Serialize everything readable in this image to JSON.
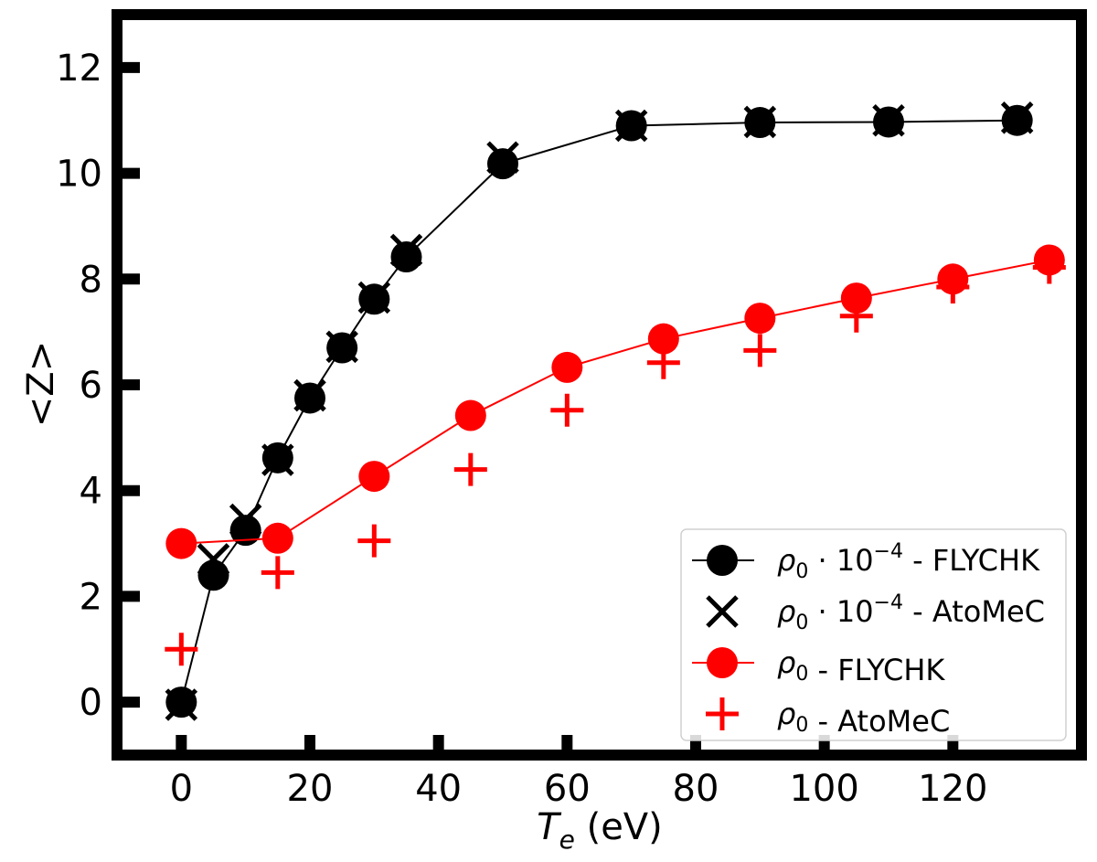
{
  "chart_data": {
    "type": "line",
    "title": "",
    "xlabel_var": "T",
    "xlabel_sub": "e",
    "xlabel_unit": " (eV)",
    "ylabel": "<Z>",
    "xlim": [
      -10,
      140
    ],
    "ylim": [
      -1,
      13
    ],
    "xticks": [
      0,
      20,
      40,
      60,
      80,
      100,
      120
    ],
    "xtick_labels": [
      "0",
      "20",
      "40",
      "60",
      "80",
      "100",
      "120"
    ],
    "yticks": [
      0,
      2,
      4,
      6,
      8,
      10,
      12
    ],
    "ytick_labels": [
      "0",
      "2",
      "4",
      "6",
      "8",
      "10",
      "12"
    ],
    "grid": false,
    "legend_position": "bottom-right",
    "series": [
      {
        "name": "ρ0·10^-4 - FLYCHK",
        "legend_sym": "ρ",
        "legend_sub": "0",
        "legend_mid": " · 10",
        "legend_sup": "−4",
        "legend_tail": " - FLYCHK",
        "color": "#000000",
        "marker": "circle",
        "line": true,
        "x": [
          0,
          5,
          10,
          15,
          20,
          25,
          30,
          35,
          50,
          70,
          90,
          110,
          130
        ],
        "y": [
          0.0,
          2.4,
          3.25,
          4.62,
          5.75,
          6.7,
          7.62,
          8.42,
          10.18,
          10.9,
          10.96,
          10.97,
          11.0
        ]
      },
      {
        "name": "ρ0·10^-4 - AtoMeC",
        "legend_sym": "ρ",
        "legend_sub": "0",
        "legend_mid": " · 10",
        "legend_sup": "−4",
        "legend_tail": " - AtoMeC",
        "color": "#000000",
        "marker": "x",
        "line": false,
        "x": [
          0,
          5,
          10,
          15,
          20,
          25,
          30,
          35,
          50,
          70,
          90,
          110,
          130
        ],
        "y": [
          -0.05,
          2.7,
          3.45,
          4.58,
          5.8,
          6.72,
          7.65,
          8.55,
          10.3,
          10.9,
          10.97,
          11.0,
          11.05
        ]
      },
      {
        "name": "ρ0 - FLYCHK",
        "legend_sym": "ρ",
        "legend_sub": "0",
        "legend_mid": "",
        "legend_sup": "",
        "legend_tail": " - FLYCHK",
        "color": "#ff0000",
        "marker": "circle",
        "line": true,
        "x": [
          0,
          15,
          30,
          45,
          60,
          75,
          90,
          105,
          120,
          135
        ],
        "y": [
          3.0,
          3.1,
          4.27,
          5.42,
          6.33,
          6.87,
          7.26,
          7.64,
          8.0,
          8.36
        ]
      },
      {
        "name": "ρ0 - AtoMeC",
        "legend_sym": "ρ",
        "legend_sub": "0",
        "legend_mid": "",
        "legend_sup": "",
        "legend_tail": " - AtoMeC",
        "color": "#ff0000",
        "marker": "plus",
        "line": false,
        "x": [
          0,
          15,
          30,
          45,
          60,
          75,
          90,
          105,
          120,
          135
        ],
        "y": [
          1.0,
          2.45,
          3.05,
          4.4,
          5.52,
          6.42,
          6.65,
          7.3,
          7.85,
          8.22
        ]
      }
    ]
  }
}
